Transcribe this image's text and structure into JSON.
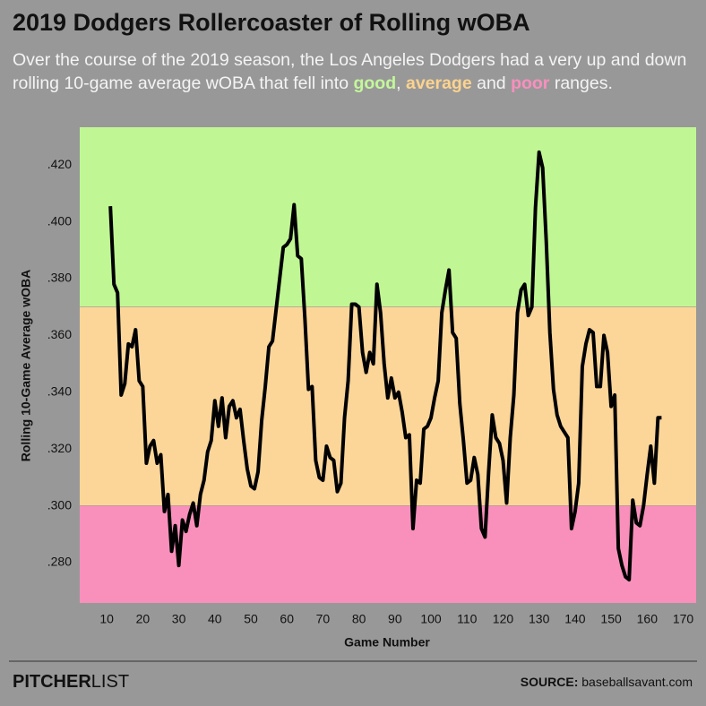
{
  "chart_data": {
    "type": "line",
    "title": "2019 Dodgers Rollercoaster of Rolling wOBA",
    "subtitle": [
      "Over the course of the 2019 season, the Los Angeles Dodgers had a very up and down rolling 10-game average wOBA that fell into ",
      "good",
      ", ",
      "average",
      " and ",
      "poor",
      " ranges."
    ],
    "ranges": [
      {
        "name": "good",
        "from": 0.37,
        "color": "#c0f794",
        "text_color": "#c4f79b"
      },
      {
        "name": "average",
        "from": 0.3,
        "to": 0.37,
        "color": "#fcd699",
        "text_color": "#fcd38f"
      },
      {
        "name": "poor",
        "to": 0.3,
        "color": "#f890bb",
        "text_color": "#f98fbd"
      }
    ],
    "x_label": "Game Number",
    "y_label": "Rolling 10-Game Average wOBA",
    "xlim": [
      2.5,
      173.6
    ],
    "ylim": [
      0.2658,
      0.4333
    ],
    "xticks": [
      10,
      20,
      30,
      40,
      50,
      60,
      70,
      80,
      90,
      100,
      110,
      120,
      130,
      140,
      150,
      160,
      170
    ],
    "yticks": [
      {
        "value": 0.28,
        "label": ".280"
      },
      {
        "value": 0.3,
        "label": ".300"
      },
      {
        "value": 0.32,
        "label": ".320"
      },
      {
        "value": 0.34,
        "label": ".340"
      },
      {
        "value": 0.36,
        "label": ".360"
      },
      {
        "value": 0.38,
        "label": ".380"
      },
      {
        "value": 0.4,
        "label": ".400"
      },
      {
        "value": 0.42,
        "label": ".420"
      }
    ],
    "x": [
      11,
      12,
      13,
      14,
      15,
      16,
      17,
      18,
      19,
      20,
      21,
      22,
      23,
      24,
      25,
      26,
      27,
      28,
      29,
      30,
      31,
      32,
      33,
      34,
      35,
      36,
      37,
      38,
      39,
      40,
      41,
      42,
      43,
      44,
      45,
      46,
      47,
      48,
      49,
      50,
      51,
      52,
      53,
      54,
      55,
      56,
      57,
      58,
      59,
      60,
      61,
      62,
      63,
      64,
      65,
      66,
      67,
      68,
      69,
      70,
      71,
      72,
      73,
      74,
      75,
      76,
      77,
      78,
      79,
      80,
      81,
      82,
      83,
      84,
      85,
      86,
      87,
      88,
      89,
      90,
      91,
      92,
      93,
      94,
      95,
      96,
      97,
      98,
      99,
      100,
      101,
      102,
      103,
      104,
      105,
      106,
      107,
      108,
      109,
      110,
      111,
      112,
      113,
      114,
      115,
      116,
      117,
      118,
      119,
      120,
      121,
      122,
      123,
      124,
      125,
      126,
      127,
      128,
      129,
      130,
      131,
      132,
      133,
      134,
      135,
      136,
      137,
      138,
      139,
      140,
      141,
      142,
      143,
      144,
      145,
      146,
      147,
      148,
      149,
      150,
      151,
      152,
      153,
      154,
      155,
      156,
      157,
      158,
      159,
      160,
      161,
      162,
      163,
      164
    ],
    "series": [
      {
        "color": "#000000",
        "values": [
          0.4055,
          0.378,
          0.375,
          0.339,
          0.343,
          0.357,
          0.356,
          0.362,
          0.344,
          0.342,
          0.315,
          0.321,
          0.323,
          0.315,
          0.318,
          0.298,
          0.304,
          0.284,
          0.293,
          0.279,
          0.295,
          0.291,
          0.297,
          0.301,
          0.293,
          0.304,
          0.309,
          0.319,
          0.323,
          0.337,
          0.328,
          0.338,
          0.324,
          0.335,
          0.337,
          0.331,
          0.334,
          0.323,
          0.313,
          0.307,
          0.306,
          0.312,
          0.33,
          0.342,
          0.356,
          0.358,
          0.369,
          0.38,
          0.391,
          0.392,
          0.394,
          0.406,
          0.388,
          0.387,
          0.366,
          0.341,
          0.342,
          0.316,
          0.31,
          0.309,
          0.321,
          0.317,
          0.316,
          0.305,
          0.308,
          0.331,
          0.344,
          0.371,
          0.371,
          0.37,
          0.354,
          0.347,
          0.354,
          0.35,
          0.378,
          0.368,
          0.35,
          0.338,
          0.345,
          0.338,
          0.34,
          0.333,
          0.324,
          0.325,
          0.292,
          0.309,
          0.308,
          0.327,
          0.328,
          0.331,
          0.338,
          0.344,
          0.368,
          0.376,
          0.383,
          0.361,
          0.359,
          0.336,
          0.323,
          0.308,
          0.309,
          0.317,
          0.311,
          0.292,
          0.289,
          0.312,
          0.332,
          0.324,
          0.322,
          0.316,
          0.301,
          0.324,
          0.339,
          0.368,
          0.376,
          0.378,
          0.367,
          0.37,
          0.405,
          0.4245,
          0.419,
          0.393,
          0.361,
          0.341,
          0.332,
          0.328,
          0.326,
          0.324,
          0.292,
          0.298,
          0.308,
          0.349,
          0.357,
          0.362,
          0.361,
          0.342,
          0.342,
          0.36,
          0.354,
          0.335,
          0.339,
          0.285,
          0.279,
          0.275,
          0.274,
          0.302,
          0.294,
          0.293,
          0.3,
          0.311,
          0.321,
          0.308,
          0.331,
          0.331
        ]
      }
    ]
  },
  "footer": {
    "brand_bold": "PITCHER",
    "brand_light": "LIST",
    "source_label": "SOURCE:",
    "source": "baseballsavant.com"
  }
}
